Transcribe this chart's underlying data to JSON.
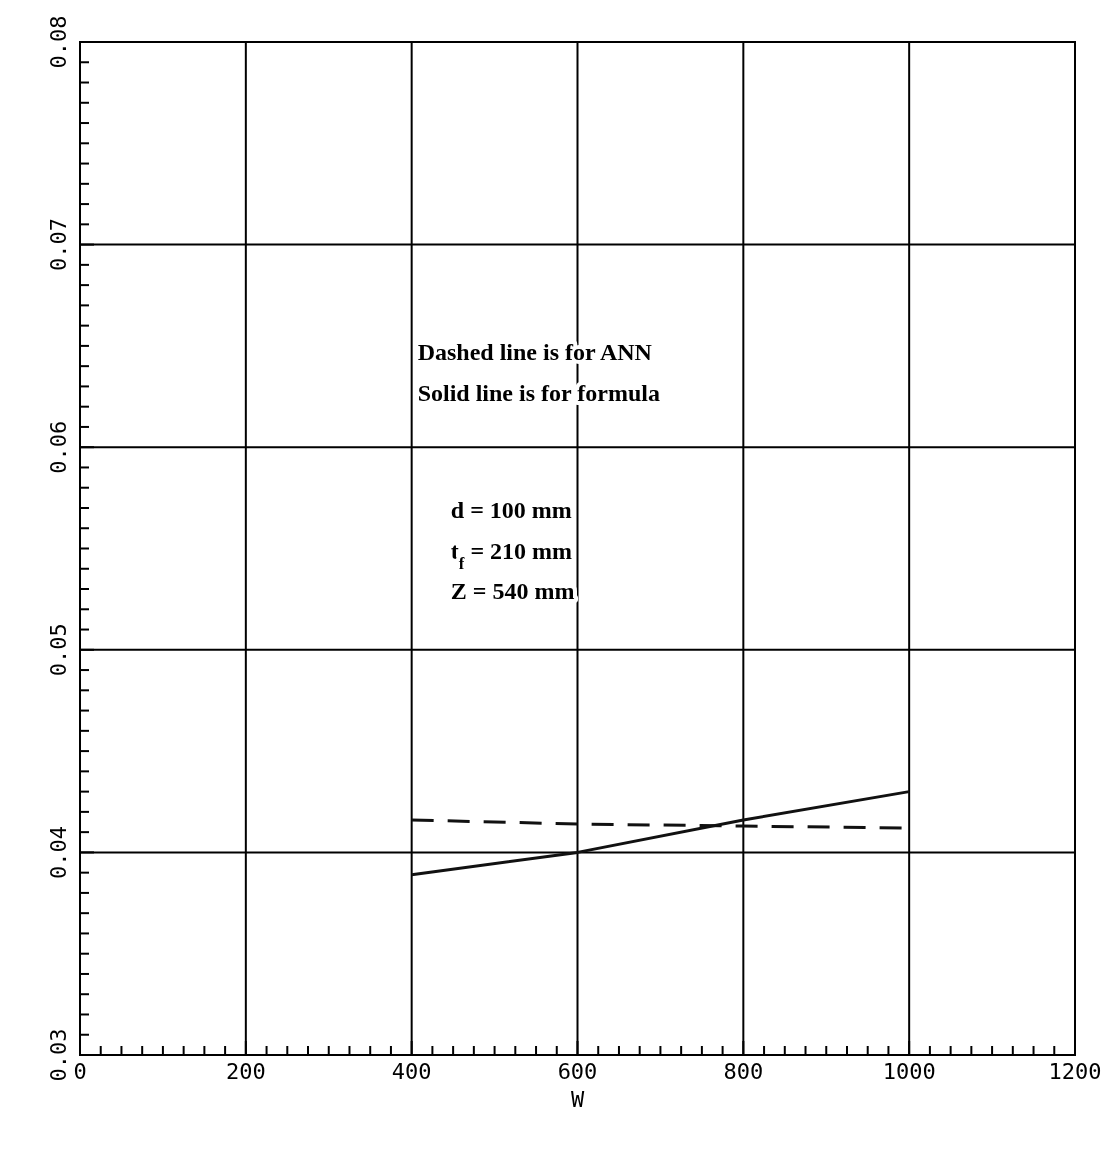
{
  "chart_data": {
    "type": "line",
    "xlabel": "W",
    "x": [
      400,
      600,
      800,
      1000
    ],
    "series": [
      {
        "color": "#111111",
        "line_style": "dashed",
        "values": [
          0.0416,
          0.0414,
          0.0413,
          0.0412
        ]
      },
      {
        "color": "#111111",
        "line_style": "solid",
        "values": [
          0.0389,
          0.04,
          0.0416,
          0.043
        ]
      }
    ],
    "xlim": [
      0,
      1200
    ],
    "ylim": [
      0.03,
      0.08
    ],
    "xticks": [
      0,
      {
        "value": 25,
        "label": null
      },
      {
        "value": 50,
        "label": null
      },
      {
        "value": 75,
        "label": null
      },
      {
        "value": 100,
        "label": null
      },
      {
        "value": 125,
        "label": null
      },
      {
        "value": 150,
        "label": null
      },
      {
        "value": 175,
        "label": null
      },
      200,
      {
        "value": 225,
        "label": null
      },
      {
        "value": 250,
        "label": null
      },
      {
        "value": 275,
        "label": null
      },
      {
        "value": 300,
        "label": null
      },
      {
        "value": 325,
        "label": null
      },
      {
        "value": 350,
        "label": null
      },
      {
        "value": 375,
        "label": null
      },
      400,
      {
        "value": 425,
        "label": null
      },
      {
        "value": 450,
        "label": null
      },
      {
        "value": 475,
        "label": null
      },
      {
        "value": 500,
        "label": null
      },
      {
        "value": 525,
        "label": null
      },
      {
        "value": 550,
        "label": null
      },
      {
        "value": 575,
        "label": null
      },
      600,
      {
        "value": 625,
        "label": null
      },
      {
        "value": 650,
        "label": null
      },
      {
        "value": 675,
        "label": null
      },
      {
        "value": 700,
        "label": null
      },
      {
        "value": 725,
        "label": null
      },
      {
        "value": 750,
        "label": null
      },
      {
        "value": 775,
        "label": null
      },
      800,
      {
        "value": 825,
        "label": null
      },
      {
        "value": 850,
        "label": null
      },
      {
        "value": 875,
        "label": null
      },
      {
        "value": 900,
        "label": null
      },
      {
        "value": 925,
        "label": null
      },
      {
        "value": 950,
        "label": null
      },
      {
        "value": 975,
        "label": null
      },
      1000,
      {
        "value": 1025,
        "label": null
      },
      {
        "value": 1050,
        "label": null
      },
      {
        "value": 1075,
        "label": null
      },
      {
        "value": 1100,
        "label": null
      },
      {
        "value": 1125,
        "label": null
      },
      {
        "value": 1150,
        "label": null
      },
      {
        "value": 1175,
        "label": null
      },
      1200
    ],
    "yticks": [
      0.03,
      {
        "value": 0.031,
        "label": null
      },
      {
        "value": 0.032,
        "label": null
      },
      {
        "value": 0.033,
        "label": null
      },
      {
        "value": 0.034,
        "label": null
      },
      {
        "value": 0.035,
        "label": null
      },
      {
        "value": 0.036,
        "label": null
      },
      {
        "value": 0.037,
        "label": null
      },
      {
        "value": 0.038,
        "label": null
      },
      {
        "value": 0.039,
        "label": null
      },
      0.04,
      {
        "value": 0.041,
        "label": null
      },
      {
        "value": 0.042,
        "label": null
      },
      {
        "value": 0.043,
        "label": null
      },
      {
        "value": 0.044,
        "label": null
      },
      {
        "value": 0.045,
        "label": null
      },
      {
        "value": 0.046,
        "label": null
      },
      {
        "value": 0.047,
        "label": null
      },
      {
        "value": 0.048,
        "label": null
      },
      {
        "value": 0.049,
        "label": null
      },
      0.05,
      {
        "value": 0.051,
        "label": null
      },
      {
        "value": 0.052,
        "label": null
      },
      {
        "value": 0.053,
        "label": null
      },
      {
        "value": 0.054,
        "label": null
      },
      {
        "value": 0.055,
        "label": null
      },
      {
        "value": 0.056,
        "label": null
      },
      {
        "value": 0.057,
        "label": null
      },
      {
        "value": 0.058,
        "label": null
      },
      {
        "value": 0.059,
        "label": null
      },
      0.06,
      {
        "value": 0.061,
        "label": null
      },
      {
        "value": 0.062,
        "label": null
      },
      {
        "value": 0.063,
        "label": null
      },
      {
        "value": 0.064,
        "label": null
      },
      {
        "value": 0.065,
        "label": null
      },
      {
        "value": 0.066,
        "label": null
      },
      {
        "value": 0.067,
        "label": null
      },
      {
        "value": 0.068,
        "label": null
      },
      {
        "value": 0.069,
        "label": null
      },
      0.07,
      {
        "value": 0.071,
        "label": null
      },
      {
        "value": 0.072,
        "label": null
      },
      {
        "value": 0.073,
        "label": null
      },
      {
        "value": 0.074,
        "label": null
      },
      {
        "value": 0.075,
        "label": null
      },
      {
        "value": 0.076,
        "label": null
      },
      {
        "value": 0.077,
        "label": null
      },
      {
        "value": 0.078,
        "label": null
      },
      {
        "value": 0.079,
        "label": null
      },
      0.08
    ],
    "grid": true,
    "annotations": [
      "Dashed line is for ANN",
      "Solid line is for formula",
      "d = 100 mm",
      "t$_{f}$ = 210 mm",
      "Z = 540 mm"
    ]
  }
}
